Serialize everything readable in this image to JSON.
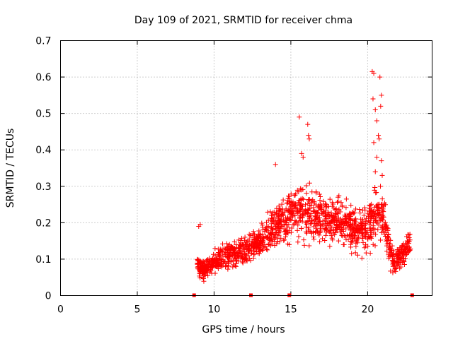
{
  "chart_data": {
    "type": "scatter",
    "title": "Day 109 of 2021, SRMTID for receiver chma",
    "xlabel": "GPS time / hours",
    "ylabel": "SRMTID / TECUs",
    "xlim": [
      0,
      24.2
    ],
    "ylim": [
      0,
      0.7
    ],
    "xticks": [
      0,
      5,
      10,
      15,
      20
    ],
    "yticks": [
      0,
      0.1,
      0.2,
      0.3,
      0.4,
      0.5,
      0.6,
      0.7
    ],
    "xtick_labels": [
      "0",
      "5",
      "10",
      "15",
      "20"
    ],
    "ytick_labels": [
      "0",
      "0.1",
      "0.2",
      "0.3",
      "0.4",
      "0.5",
      "0.6",
      "0.7"
    ],
    "grid": true,
    "marker": "+",
    "color": "#ff0000",
    "gap_markers_x": [
      8.7,
      12.4,
      14.9,
      22.9
    ],
    "envelope": {
      "x": [
        8.9,
        9.3,
        9.7,
        10.2,
        10.8,
        11.5,
        12.2,
        12.8,
        13.4,
        14.0,
        14.6,
        15.2,
        15.7,
        16.2,
        16.8,
        17.4,
        18.0,
        18.6,
        19.2,
        19.8,
        20.3,
        20.7,
        21.1,
        21.5,
        21.8,
        22.1,
        22.4,
        22.8
      ],
      "low": [
        0.05,
        0.03,
        0.04,
        0.05,
        0.06,
        0.06,
        0.07,
        0.08,
        0.09,
        0.11,
        0.12,
        0.13,
        0.13,
        0.12,
        0.13,
        0.12,
        0.12,
        0.1,
        0.09,
        0.09,
        0.1,
        0.12,
        0.12,
        0.06,
        0.04,
        0.06,
        0.07,
        0.1
      ],
      "high": [
        0.12,
        0.11,
        0.12,
        0.14,
        0.16,
        0.17,
        0.19,
        0.21,
        0.24,
        0.27,
        0.3,
        0.33,
        0.33,
        0.32,
        0.3,
        0.3,
        0.29,
        0.28,
        0.28,
        0.28,
        0.3,
        0.34,
        0.28,
        0.16,
        0.14,
        0.15,
        0.17,
        0.2
      ]
    },
    "outliers": [
      {
        "x": 9.0,
        "y": 0.19
      },
      {
        "x": 9.1,
        "y": 0.195
      },
      {
        "x": 14.0,
        "y": 0.36
      },
      {
        "x": 15.55,
        "y": 0.49
      },
      {
        "x": 15.7,
        "y": 0.39
      },
      {
        "x": 15.8,
        "y": 0.38
      },
      {
        "x": 16.1,
        "y": 0.47
      },
      {
        "x": 16.15,
        "y": 0.44
      },
      {
        "x": 16.2,
        "y": 0.43
      },
      {
        "x": 20.3,
        "y": 0.615
      },
      {
        "x": 20.4,
        "y": 0.61
      },
      {
        "x": 20.35,
        "y": 0.54
      },
      {
        "x": 20.5,
        "y": 0.51
      },
      {
        "x": 20.6,
        "y": 0.48
      },
      {
        "x": 20.7,
        "y": 0.44
      },
      {
        "x": 20.8,
        "y": 0.6
      },
      {
        "x": 20.9,
        "y": 0.55
      },
      {
        "x": 20.85,
        "y": 0.52
      },
      {
        "x": 20.75,
        "y": 0.43
      },
      {
        "x": 20.4,
        "y": 0.42
      },
      {
        "x": 20.6,
        "y": 0.38
      },
      {
        "x": 20.9,
        "y": 0.37
      },
      {
        "x": 20.5,
        "y": 0.34
      },
      {
        "x": 20.95,
        "y": 0.33
      }
    ]
  }
}
